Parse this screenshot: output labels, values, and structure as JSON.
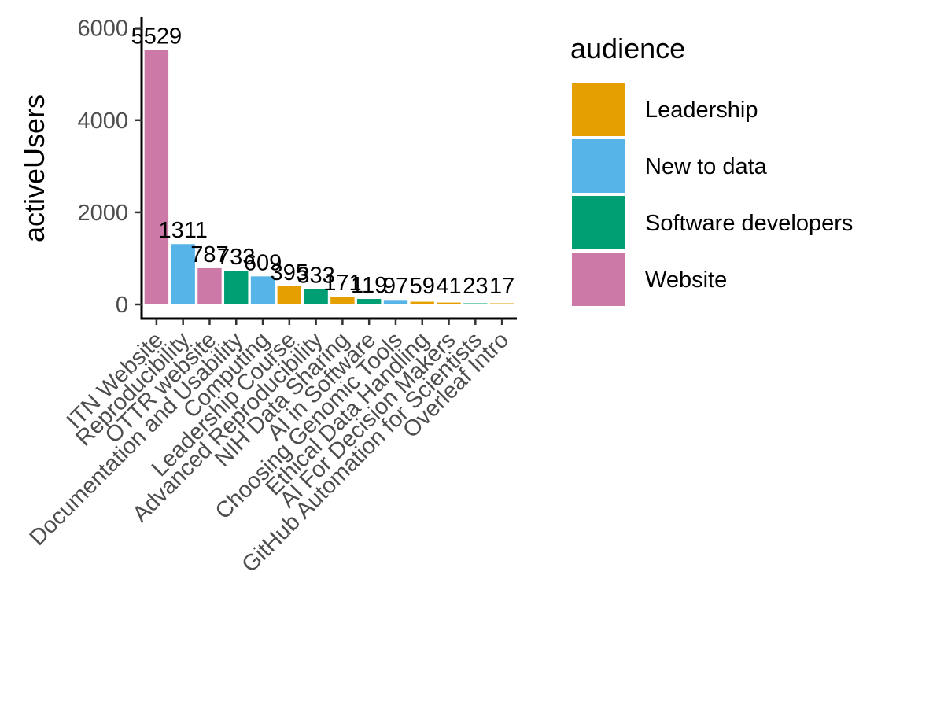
{
  "chart_data": {
    "type": "bar",
    "ylabel": "activeUsers",
    "xlabel": "",
    "title": "",
    "ylim": [
      0,
      6200
    ],
    "yticks": [
      0,
      2000,
      4000,
      6000
    ],
    "grid": false,
    "legend_placement": "right",
    "legend_title": "audience",
    "legend": [
      {
        "name": "Leadership",
        "color": "#E69F00"
      },
      {
        "name": "New to data",
        "color": "#56B4E9"
      },
      {
        "name": "Software developers",
        "color": "#009E73"
      },
      {
        "name": "Website",
        "color": "#CC79A7"
      }
    ],
    "categories": [
      "ITN Website",
      "Reproducibility",
      "OTTR website",
      "Documentation and Usability",
      "Computing",
      "Leadership Course",
      "Advanced Reproducibility",
      "NIH Data Sharing",
      "AI in Software",
      "Choosing Genomic Tools",
      "Ethical Data Handling",
      "AI For Decision Makers",
      "GitHub Automation for Scientists",
      "Overleaf Intro"
    ],
    "values": [
      5529,
      1311,
      787,
      733,
      609,
      395,
      333,
      171,
      119,
      97,
      59,
      41,
      23,
      17
    ],
    "data_labels": [
      "5529",
      "1311",
      "787",
      "733",
      "609",
      "395",
      "333",
      "171",
      "119",
      "97",
      "59",
      "41",
      "23",
      "17"
    ],
    "audience": [
      "Website",
      "New to data",
      "Website",
      "Software developers",
      "New to data",
      "Leadership",
      "Software developers",
      "Leadership",
      "Software developers",
      "New to data",
      "Leadership",
      "Leadership",
      "Software developers",
      "Leadership"
    ]
  }
}
